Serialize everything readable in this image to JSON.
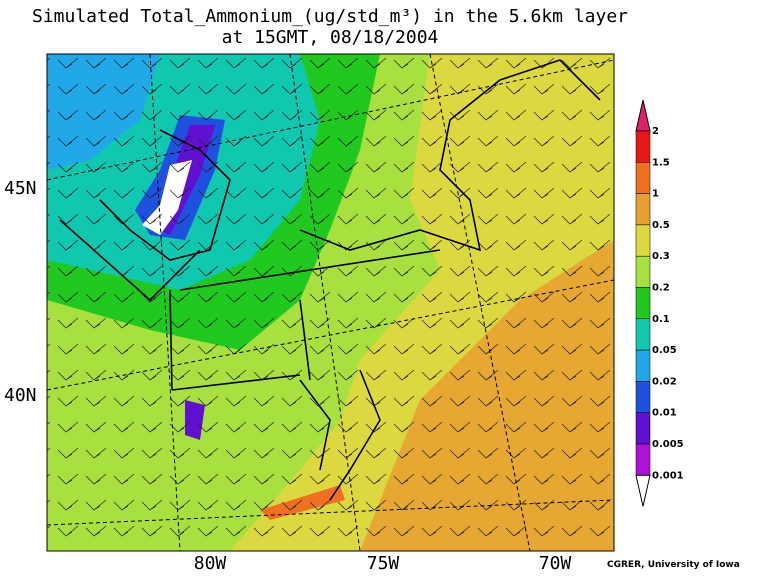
{
  "title": [
    "Simulated Total_Ammonium_(ug/std_m³) in the 5.6km layer",
    "at 15GMT, 08/18/2004"
  ],
  "lat_labels": [
    "45N",
    "40N"
  ],
  "lon_labels": [
    "80W",
    "75W",
    "70W"
  ],
  "colorbar": {
    "labels": [
      "2",
      "1.5",
      "1",
      "0.5",
      "0.3",
      "0.2",
      "0.1",
      "0.05",
      "0.02",
      "0.01",
      "0.005",
      "0.001"
    ],
    "colors": [
      "#e0206a",
      "#e81818",
      "#f07020",
      "#e8a030",
      "#dcd840",
      "#a8e040",
      "#20c820",
      "#10c8b0",
      "#20a8e8",
      "#2050e0",
      "#6010d0",
      "#b010d8",
      "#ffffff"
    ]
  },
  "credit": "CGRER, University of Iowa"
}
